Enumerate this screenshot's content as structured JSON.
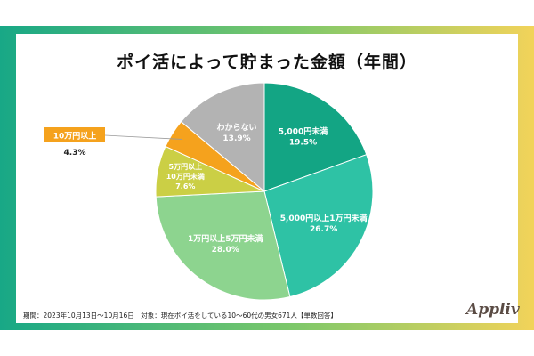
{
  "title": "ポイ活によって貯まった金額（年間）",
  "footnote": "期間：2023年10月13日〜10月16日　対象：現在ポイ活をしている10〜60代の男女671人【単数回答】",
  "brand": "Appliv",
  "colors": {
    "frame_left": "#18a886",
    "frame_mid": "#7dc86a",
    "frame_right": "#f2d35a"
  },
  "chart_data": {
    "type": "pie",
    "title": "ポイ活によって貯まった金額（年間）",
    "unit": "%",
    "slices": [
      {
        "label_lines": [
          "5,000円未満"
        ],
        "value": 19.5,
        "value_text": "19.5%",
        "color": "#13a584",
        "text_color": "#ffffff"
      },
      {
        "label_lines": [
          "5,000円以上1万円未満"
        ],
        "value": 26.7,
        "value_text": "26.7%",
        "color": "#2ec2a5",
        "text_color": "#ffffff"
      },
      {
        "label_lines": [
          "1万円以上5万円未満"
        ],
        "value": 28.0,
        "value_text": "28.0%",
        "color": "#8dd48f",
        "text_color": "#ffffff"
      },
      {
        "label_lines": [
          "5万円以上",
          "10万円未満"
        ],
        "value": 7.6,
        "value_text": "7.6%",
        "color": "#cbcf45",
        "text_color": "#ffffff"
      },
      {
        "label_lines": [
          "10万円以上"
        ],
        "value": 4.3,
        "value_text": "4.3%",
        "color": "#f5a21d",
        "text_color": "#222222"
      },
      {
        "label_lines": [
          "わからない"
        ],
        "value": 13.9,
        "value_text": "13.9%",
        "color": "#b3b3b3",
        "text_color": "#ffffff"
      }
    ]
  }
}
